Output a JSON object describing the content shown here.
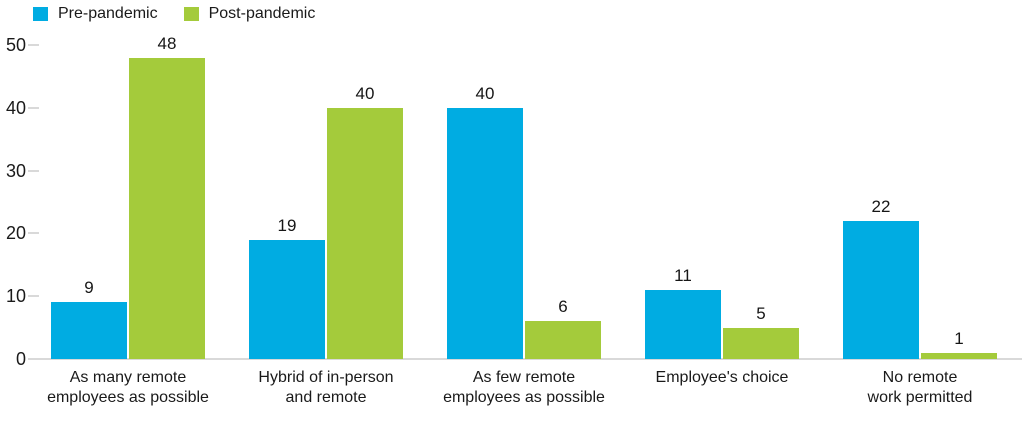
{
  "chart_data": {
    "type": "bar",
    "title": "",
    "xlabel": "",
    "ylabel": "",
    "categories": [
      "As many remote\nemployees as possible",
      "Hybrid of in-person\nand remote",
      "As few remote\nemployees as possible",
      "Employee's choice",
      "No remote\nwork permitted"
    ],
    "series": [
      {
        "name": "Pre-pandemic",
        "color": "#00ace2",
        "values": [
          9,
          19,
          40,
          11,
          22
        ]
      },
      {
        "name": "Post-pandemic",
        "color": "#a4cb3b",
        "values": [
          48,
          40,
          6,
          5,
          1
        ]
      }
    ],
    "ylim": [
      0,
      50
    ],
    "yticks": [
      0,
      10,
      20,
      30,
      40,
      50
    ],
    "grid": false,
    "value_labels": true,
    "legend_position": "top-left"
  },
  "colors": {
    "pre_pandemic": "#00ace2",
    "post_pandemic": "#a4cb3b",
    "axis_line": "#d9d9d9",
    "text": "#1a1a1a",
    "background": "#ffffff"
  }
}
